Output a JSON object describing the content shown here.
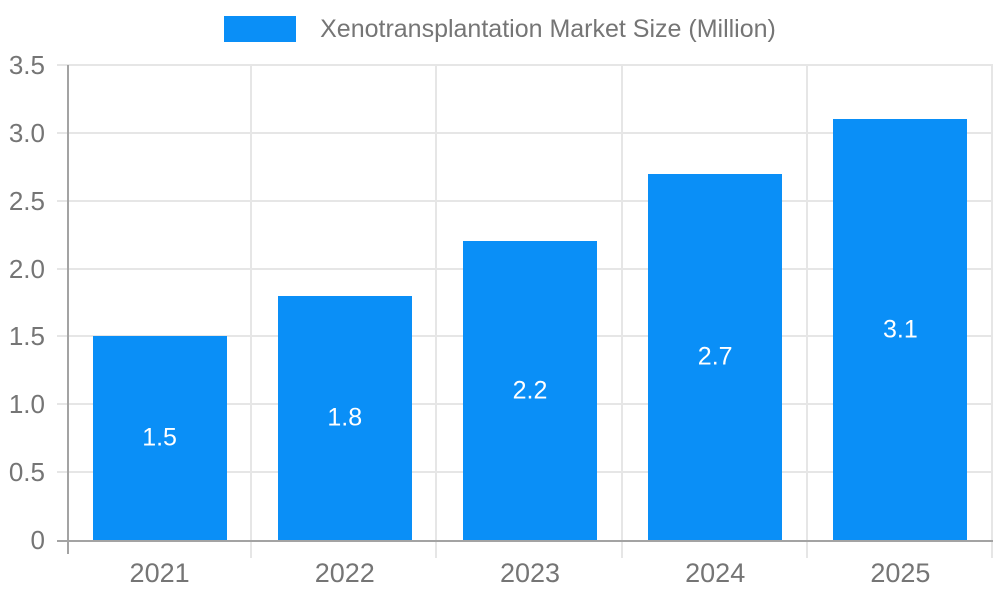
{
  "legend": {
    "label": "Xenotransplantation Market Size (Million)"
  },
  "colors": {
    "bar": "#0a8ff7",
    "grid": "#e6e6e6",
    "axis": "#a3a3a3",
    "axis_text": "#757575",
    "bar_label_text": "#ffffff",
    "background": "#ffffff"
  },
  "chart_data": {
    "type": "bar",
    "title": "Xenotransplantation Market Size (Million)",
    "categories": [
      "2021",
      "2022",
      "2023",
      "2024",
      "2025"
    ],
    "values": [
      1.5,
      1.8,
      2.2,
      2.7,
      3.1
    ],
    "bar_labels": [
      "1.5",
      "1.8",
      "2.2",
      "2.7",
      "3.1"
    ],
    "xlabel": "",
    "ylabel": "",
    "ylim": [
      0,
      3.5
    ],
    "yticks": [
      0,
      0.5,
      1.0,
      1.5,
      2.0,
      2.5,
      3.0,
      3.5
    ],
    "ytick_labels": [
      "0",
      "0.5",
      "1.0",
      "1.5",
      "2.0",
      "2.5",
      "3.0",
      "3.5"
    ],
    "grid": "both",
    "legend_position": "top-center",
    "series": [
      {
        "name": "Xenotransplantation Market Size (Million)",
        "values": [
          1.5,
          1.8,
          2.2,
          2.7,
          3.1
        ],
        "color": "#0a8ff7"
      }
    ]
  }
}
